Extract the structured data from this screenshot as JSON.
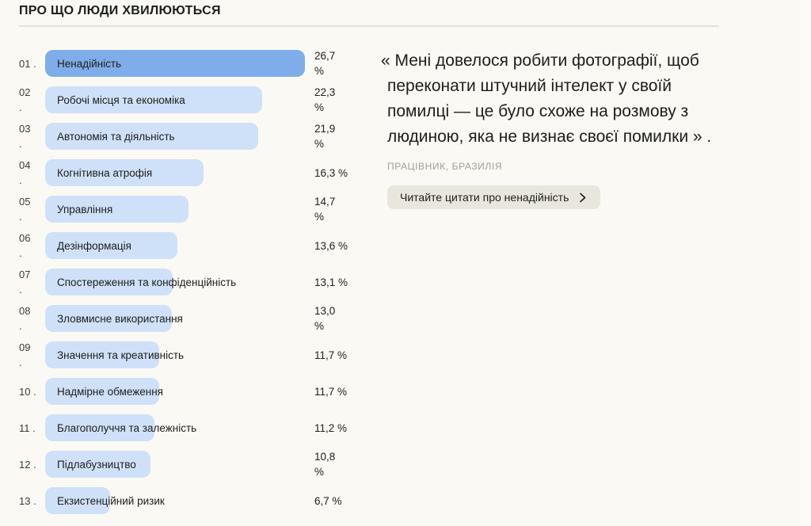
{
  "header": {
    "title": "ПРО ЩО ЛЮДИ ХВИЛЮЮТЬСЯ"
  },
  "colors": {
    "background": "#faf9f4",
    "bar_highlight": "#7fade9",
    "bar_default": "#cfe1f8",
    "divider": "#e4e1da",
    "button_background": "#e9e6de",
    "attribution_text": "#a39e93"
  },
  "chart_data": {
    "type": "bar",
    "orientation": "horizontal",
    "title": "ПРО ЩО ЛЮДИ ХВИЛЮЮТЬСЯ",
    "unit": "%",
    "xlim": [
      0,
      26.7
    ],
    "grid": false,
    "legend": false,
    "categories": [
      "Ненадійність",
      "Робочі місця та економіка",
      "Автономія та діяльність",
      "Когнітивна атрофія",
      "Управління",
      "Дезінформація",
      "Спостереження та конфіденційність",
      "Зловмисне використання",
      "Значення та креативність",
      "Надмірне обмеження",
      "Благополуччя та залежність",
      "Підлабузництво",
      "Екзистенційний ризик"
    ],
    "values": [
      26.7,
      22.3,
      21.9,
      16.3,
      14.7,
      13.6,
      13.1,
      13.0,
      11.7,
      11.7,
      11.2,
      10.8,
      6.7
    ],
    "items": [
      {
        "rank": "01",
        "rank_two_line": false,
        "label": "Ненадійність",
        "value": 26.7,
        "value_label": "26,7 %",
        "value_two_line": true,
        "highlighted": true
      },
      {
        "rank": "02",
        "rank_two_line": true,
        "label": "Робочі місця та економіка",
        "value": 22.3,
        "value_label": "22,3 %",
        "value_two_line": true,
        "highlighted": false
      },
      {
        "rank": "03",
        "rank_two_line": true,
        "label": "Автономія та діяльність",
        "value": 21.9,
        "value_label": "21,9 %",
        "value_two_line": true,
        "highlighted": false
      },
      {
        "rank": "04",
        "rank_two_line": true,
        "label": "Когнітивна атрофія",
        "value": 16.3,
        "value_label": "16,3 %",
        "value_two_line": false,
        "highlighted": false
      },
      {
        "rank": "05",
        "rank_two_line": true,
        "label": "Управління",
        "value": 14.7,
        "value_label": "14,7 %",
        "value_two_line": true,
        "highlighted": false
      },
      {
        "rank": "06",
        "rank_two_line": true,
        "label": "Дезінформація",
        "value": 13.6,
        "value_label": "13,6 %",
        "value_two_line": false,
        "highlighted": false
      },
      {
        "rank": "07",
        "rank_two_line": true,
        "label": "Спостереження та конфіденційність",
        "value": 13.1,
        "value_label": "13,1 %",
        "value_two_line": false,
        "highlighted": false
      },
      {
        "rank": "08",
        "rank_two_line": true,
        "label": "Зловмисне використання",
        "value": 13.0,
        "value_label": "13,0 %",
        "value_two_line": true,
        "highlighted": false
      },
      {
        "rank": "09",
        "rank_two_line": true,
        "label": "Значення та креативність",
        "value": 11.7,
        "value_label": "11,7 %",
        "value_two_line": false,
        "highlighted": false
      },
      {
        "rank": "10",
        "rank_two_line": false,
        "label": "Надмірне обмеження",
        "value": 11.7,
        "value_label": "11,7 %",
        "value_two_line": false,
        "highlighted": false
      },
      {
        "rank": "11",
        "rank_two_line": false,
        "label": "Благополуччя та залежність",
        "value": 11.2,
        "value_label": "11,2 %",
        "value_two_line": false,
        "highlighted": false
      },
      {
        "rank": "12",
        "rank_two_line": false,
        "label": "Підлабузництво",
        "value": 10.8,
        "value_label": "10,8 %",
        "value_two_line": true,
        "highlighted": false
      },
      {
        "rank": "13",
        "rank_two_line": false,
        "label": "Екзистенційний ризик",
        "value": 6.7,
        "value_label": "6,7 %",
        "value_two_line": false,
        "highlighted": false
      }
    ]
  },
  "quote_panel": {
    "quote_lines": [
      "« Мені довелося робити фотографії, щоб",
      "переконати штучний інтелект у своїй",
      "помилці — це було схоже на розмову з",
      "людиною, яка не визнає своєї помилки » ."
    ],
    "quote_full": "« Мені довелося робити фотографії, щоб переконати штучний інтелект у своїй помилці — це було схоже на розмову з людиною, яка не визнає своєї помилки » .",
    "attribution": "ПРАЦІВНИК, БРАЗИЛІЯ",
    "button_label": "Читайте цитати про ненадійність",
    "button_icon": "chevron-right-icon"
  }
}
